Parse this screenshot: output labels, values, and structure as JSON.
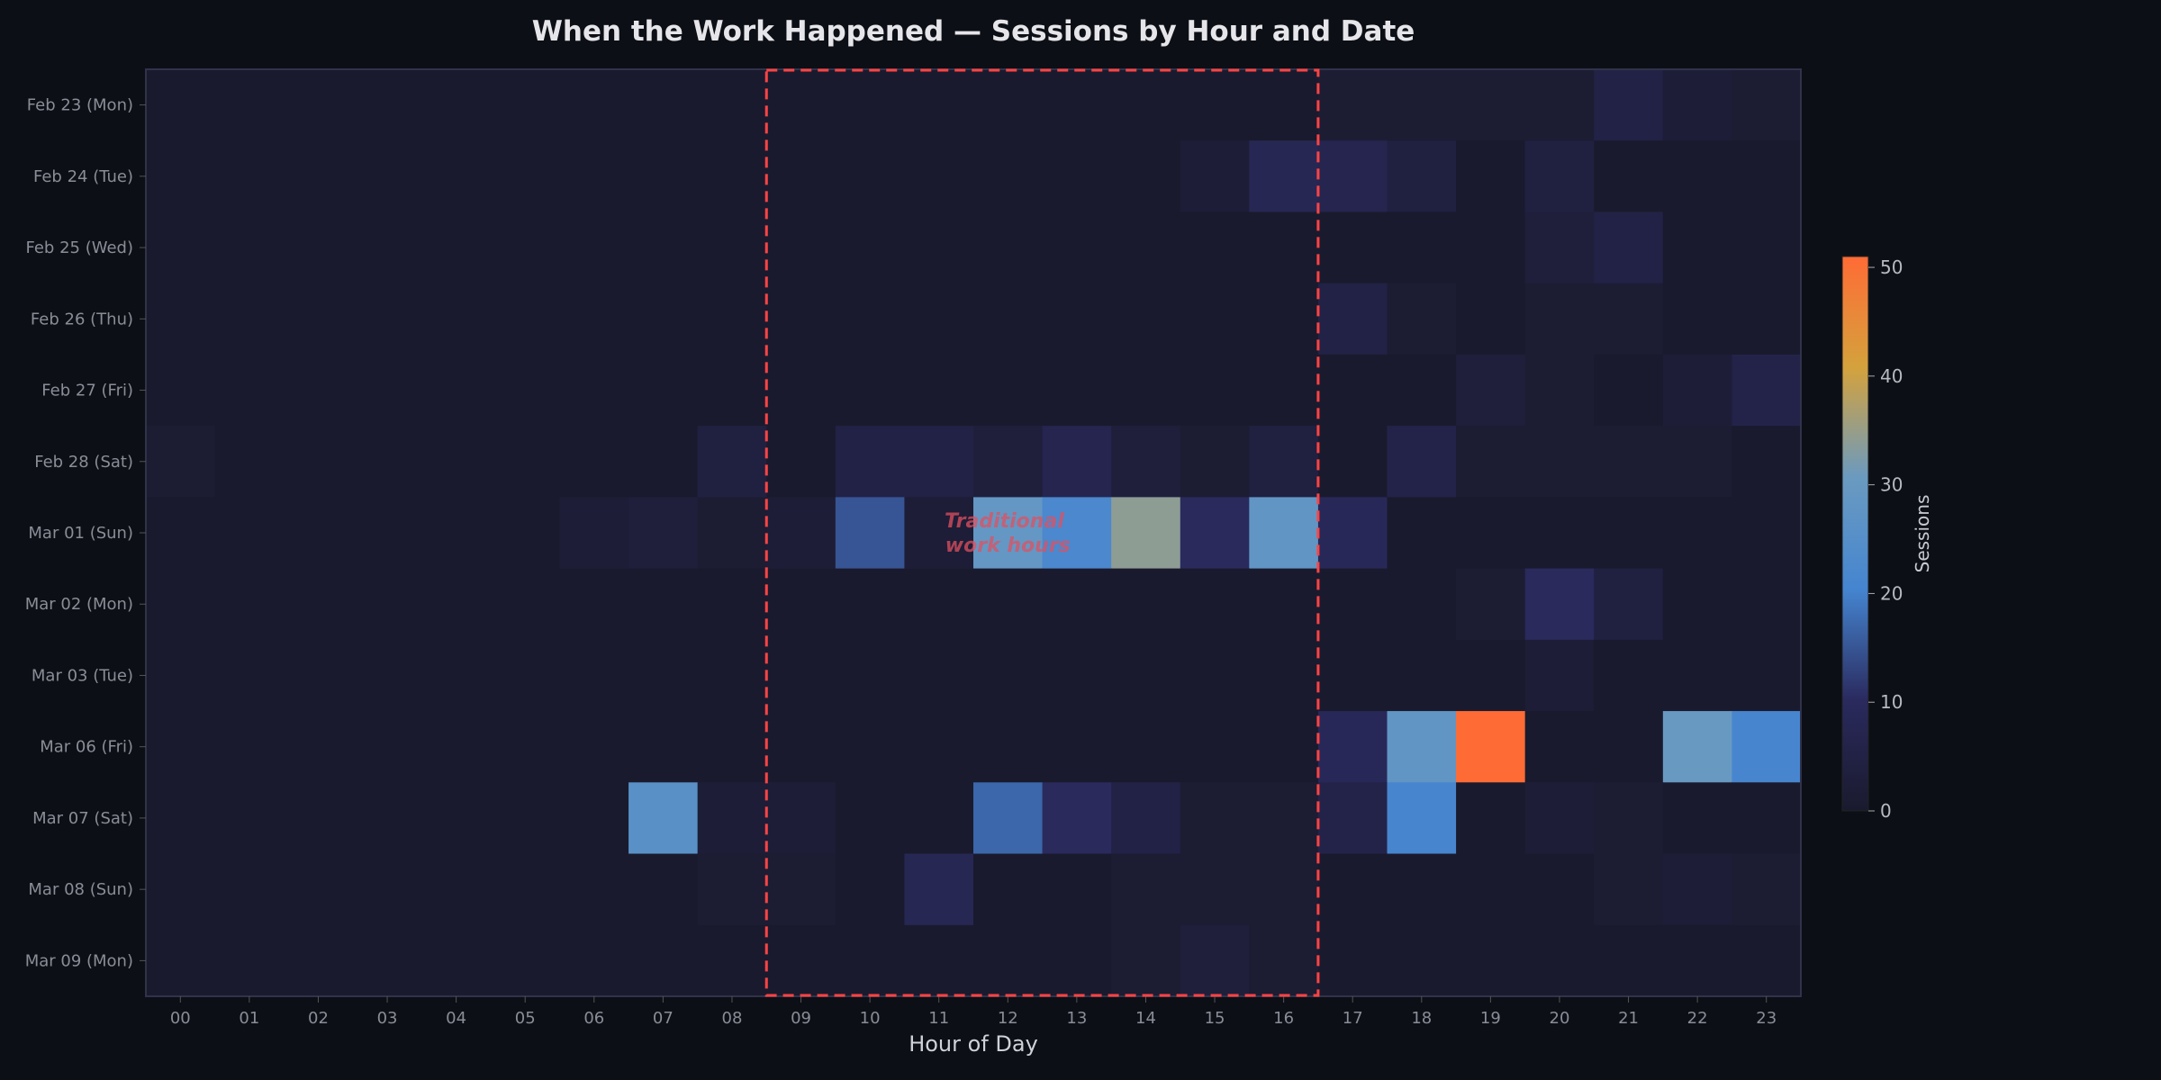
{
  "chart_data": {
    "type": "heatmap",
    "title": "When the Work Happened — Sessions by Hour and Date",
    "xlabel": "Hour of Day",
    "ylabel": "",
    "x_categories": [
      "00",
      "01",
      "02",
      "03",
      "04",
      "05",
      "06",
      "07",
      "08",
      "09",
      "10",
      "11",
      "12",
      "13",
      "14",
      "15",
      "16",
      "17",
      "18",
      "19",
      "20",
      "21",
      "22",
      "23"
    ],
    "y_categories": [
      "Feb 23 (Mon)",
      "Feb 24 (Tue)",
      "Feb 25 (Wed)",
      "Feb 26 (Thu)",
      "Feb 27 (Fri)",
      "Feb 28 (Sat)",
      "Mar 01 (Sun)",
      "Mar 02 (Mon)",
      "Mar 03 (Tue)",
      "Mar 06 (Fri)",
      "Mar 07 (Sat)",
      "Mar 08 (Sun)",
      "Mar 09 (Mon)"
    ],
    "values": [
      [
        0,
        0,
        0,
        0,
        0,
        0,
        0,
        0,
        0,
        0,
        0,
        0,
        0,
        0,
        0,
        0,
        0,
        1,
        1,
        1,
        1,
        5,
        2,
        1
      ],
      [
        0,
        0,
        0,
        0,
        0,
        0,
        0,
        0,
        0,
        0,
        0,
        0,
        0,
        0,
        0,
        2,
        8,
        7,
        4,
        0,
        4,
        0,
        0,
        0
      ],
      [
        0,
        0,
        0,
        0,
        0,
        0,
        0,
        0,
        0,
        0,
        0,
        0,
        0,
        0,
        0,
        0,
        0,
        0,
        0,
        0,
        3,
        5,
        0,
        0
      ],
      [
        0,
        0,
        0,
        0,
        0,
        0,
        0,
        0,
        0,
        0,
        0,
        0,
        0,
        0,
        0,
        0,
        0,
        5,
        1,
        0,
        1,
        1,
        0,
        0
      ],
      [
        0,
        0,
        0,
        0,
        0,
        0,
        0,
        0,
        0,
        0,
        0,
        0,
        0,
        0,
        0,
        0,
        0,
        0,
        0,
        3,
        1,
        0,
        2,
        6
      ],
      [
        1,
        0,
        0,
        0,
        0,
        0,
        0,
        0,
        4,
        0,
        5,
        5,
        3,
        7,
        3,
        1,
        4,
        0,
        6,
        1,
        1,
        1,
        1,
        0
      ],
      [
        0,
        0,
        0,
        0,
        0,
        0,
        2,
        3,
        1,
        2,
        15,
        2,
        29,
        22,
        34,
        10,
        28,
        9,
        0,
        0,
        0,
        0,
        0,
        0
      ],
      [
        0,
        0,
        0,
        0,
        0,
        0,
        0,
        0,
        0,
        0,
        0,
        0,
        0,
        0,
        0,
        0,
        0,
        0,
        0,
        1,
        10,
        4,
        0,
        0
      ],
      [
        0,
        0,
        0,
        0,
        0,
        0,
        0,
        0,
        0,
        0,
        0,
        0,
        0,
        0,
        0,
        0,
        0,
        0,
        0,
        0,
        2,
        0,
        0,
        0
      ],
      [
        0,
        0,
        0,
        0,
        0,
        0,
        0,
        0,
        0,
        0,
        0,
        0,
        0,
        0,
        0,
        0,
        0,
        9,
        28,
        51,
        0,
        0,
        30,
        21
      ],
      [
        0,
        0,
        0,
        0,
        0,
        0,
        0,
        26,
        2,
        2,
        0,
        0,
        17,
        10,
        5,
        1,
        1,
        6,
        21,
        0,
        2,
        1,
        0,
        0
      ],
      [
        0,
        0,
        0,
        0,
        0,
        0,
        0,
        0,
        1,
        1,
        0,
        8,
        0,
        0,
        1,
        1,
        1,
        0,
        0,
        0,
        0,
        1,
        2,
        1
      ],
      [
        0,
        0,
        0,
        0,
        0,
        0,
        0,
        0,
        0,
        0,
        0,
        0,
        0,
        0,
        1,
        3,
        1,
        0,
        0,
        0,
        0,
        0,
        0,
        0
      ]
    ],
    "color_range": [
      0,
      51
    ],
    "colormap": [
      "#1a1a2e",
      "#2a2a5e",
      "#4585d0",
      "#6a9ac0",
      "#d4a23c",
      "#ff6b35"
    ],
    "colorbar": {
      "label": "Sessions",
      "ticks": [
        0,
        10,
        20,
        30,
        40,
        50
      ]
    },
    "annotation": {
      "text": [
        "Traditional",
        "work hours"
      ],
      "color": "#e05060"
    },
    "highlight_region": {
      "hours": [
        9,
        16
      ],
      "style": "dashed",
      "color": "#ff4444"
    },
    "grid": false
  }
}
